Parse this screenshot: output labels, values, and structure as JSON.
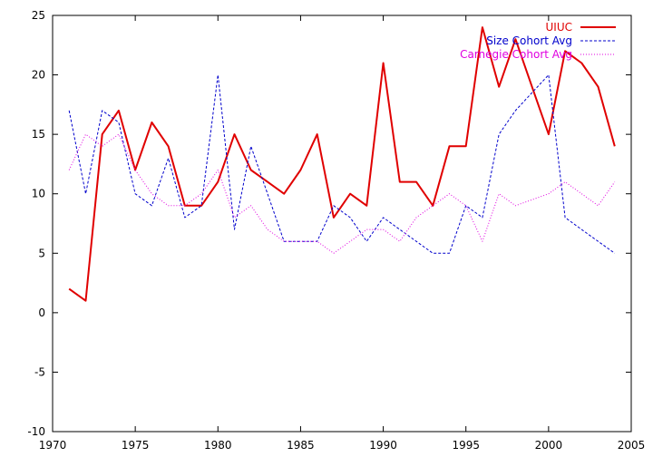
{
  "chart_data": {
    "type": "line",
    "xlim": [
      1970,
      2005
    ],
    "ylim": [
      -10,
      25
    ],
    "xticks": [
      1970,
      1975,
      1980,
      1985,
      1990,
      1995,
      2000,
      2005
    ],
    "yticks": [
      -10,
      -5,
      0,
      5,
      10,
      15,
      20,
      25
    ],
    "grid": false,
    "legend_position": "top-right",
    "series": [
      {
        "name": "UIUC",
        "color": "#e00000",
        "style": "solid",
        "x": [
          1971,
          1972,
          1973,
          1974,
          1975,
          1976,
          1977,
          1978,
          1979,
          1980,
          1981,
          1982,
          1983,
          1984,
          1985,
          1986,
          1987,
          1988,
          1989,
          1990,
          1991,
          1992,
          1993,
          1994,
          1995,
          1996,
          1997,
          1998,
          1999,
          2000,
          2001,
          2002,
          2003,
          2004
        ],
        "values": [
          2,
          1,
          15,
          17,
          12,
          16,
          14,
          9,
          9,
          11,
          15,
          12,
          11,
          10,
          12,
          15,
          8,
          10,
          9,
          21,
          11,
          11,
          9,
          14,
          14,
          24,
          19,
          23,
          19,
          15,
          22,
          21,
          19,
          14
        ]
      },
      {
        "name": "Size Cohort Avg",
        "color": "#0000cc",
        "style": "dashed",
        "x": [
          1971,
          1972,
          1973,
          1974,
          1975,
          1976,
          1977,
          1978,
          1979,
          1980,
          1981,
          1982,
          1983,
          1984,
          1985,
          1986,
          1987,
          1988,
          1989,
          1990,
          1991,
          1992,
          1993,
          1994,
          1995,
          1996,
          1997,
          1998,
          1999,
          2000,
          2001,
          2002,
          2003,
          2004
        ],
        "values": [
          17,
          10,
          17,
          16,
          10,
          9,
          13,
          8,
          9,
          20,
          7,
          14,
          10,
          6,
          6,
          6,
          9,
          8,
          6,
          8,
          7,
          6,
          5,
          5,
          9,
          8,
          15,
          17,
          18.5,
          20,
          8,
          7,
          6,
          5
        ]
      },
      {
        "name": "Carnegie Cohort Avg",
        "color": "#e000e0",
        "style": "dotted",
        "x": [
          1971,
          1972,
          1973,
          1974,
          1975,
          1976,
          1977,
          1978,
          1979,
          1980,
          1981,
          1982,
          1983,
          1984,
          1985,
          1986,
          1987,
          1988,
          1989,
          1990,
          1991,
          1992,
          1993,
          1994,
          1995,
          1996,
          1997,
          1998,
          1999,
          2000,
          2001,
          2002,
          2003,
          2004
        ],
        "values": [
          12,
          15,
          14,
          15,
          12,
          10,
          9,
          9,
          10,
          12,
          8,
          9,
          7,
          6,
          6,
          6,
          5,
          6,
          7,
          7,
          6,
          8,
          9,
          10,
          9,
          6,
          10,
          9,
          9.5,
          10,
          11,
          10,
          9,
          11
        ]
      }
    ]
  }
}
